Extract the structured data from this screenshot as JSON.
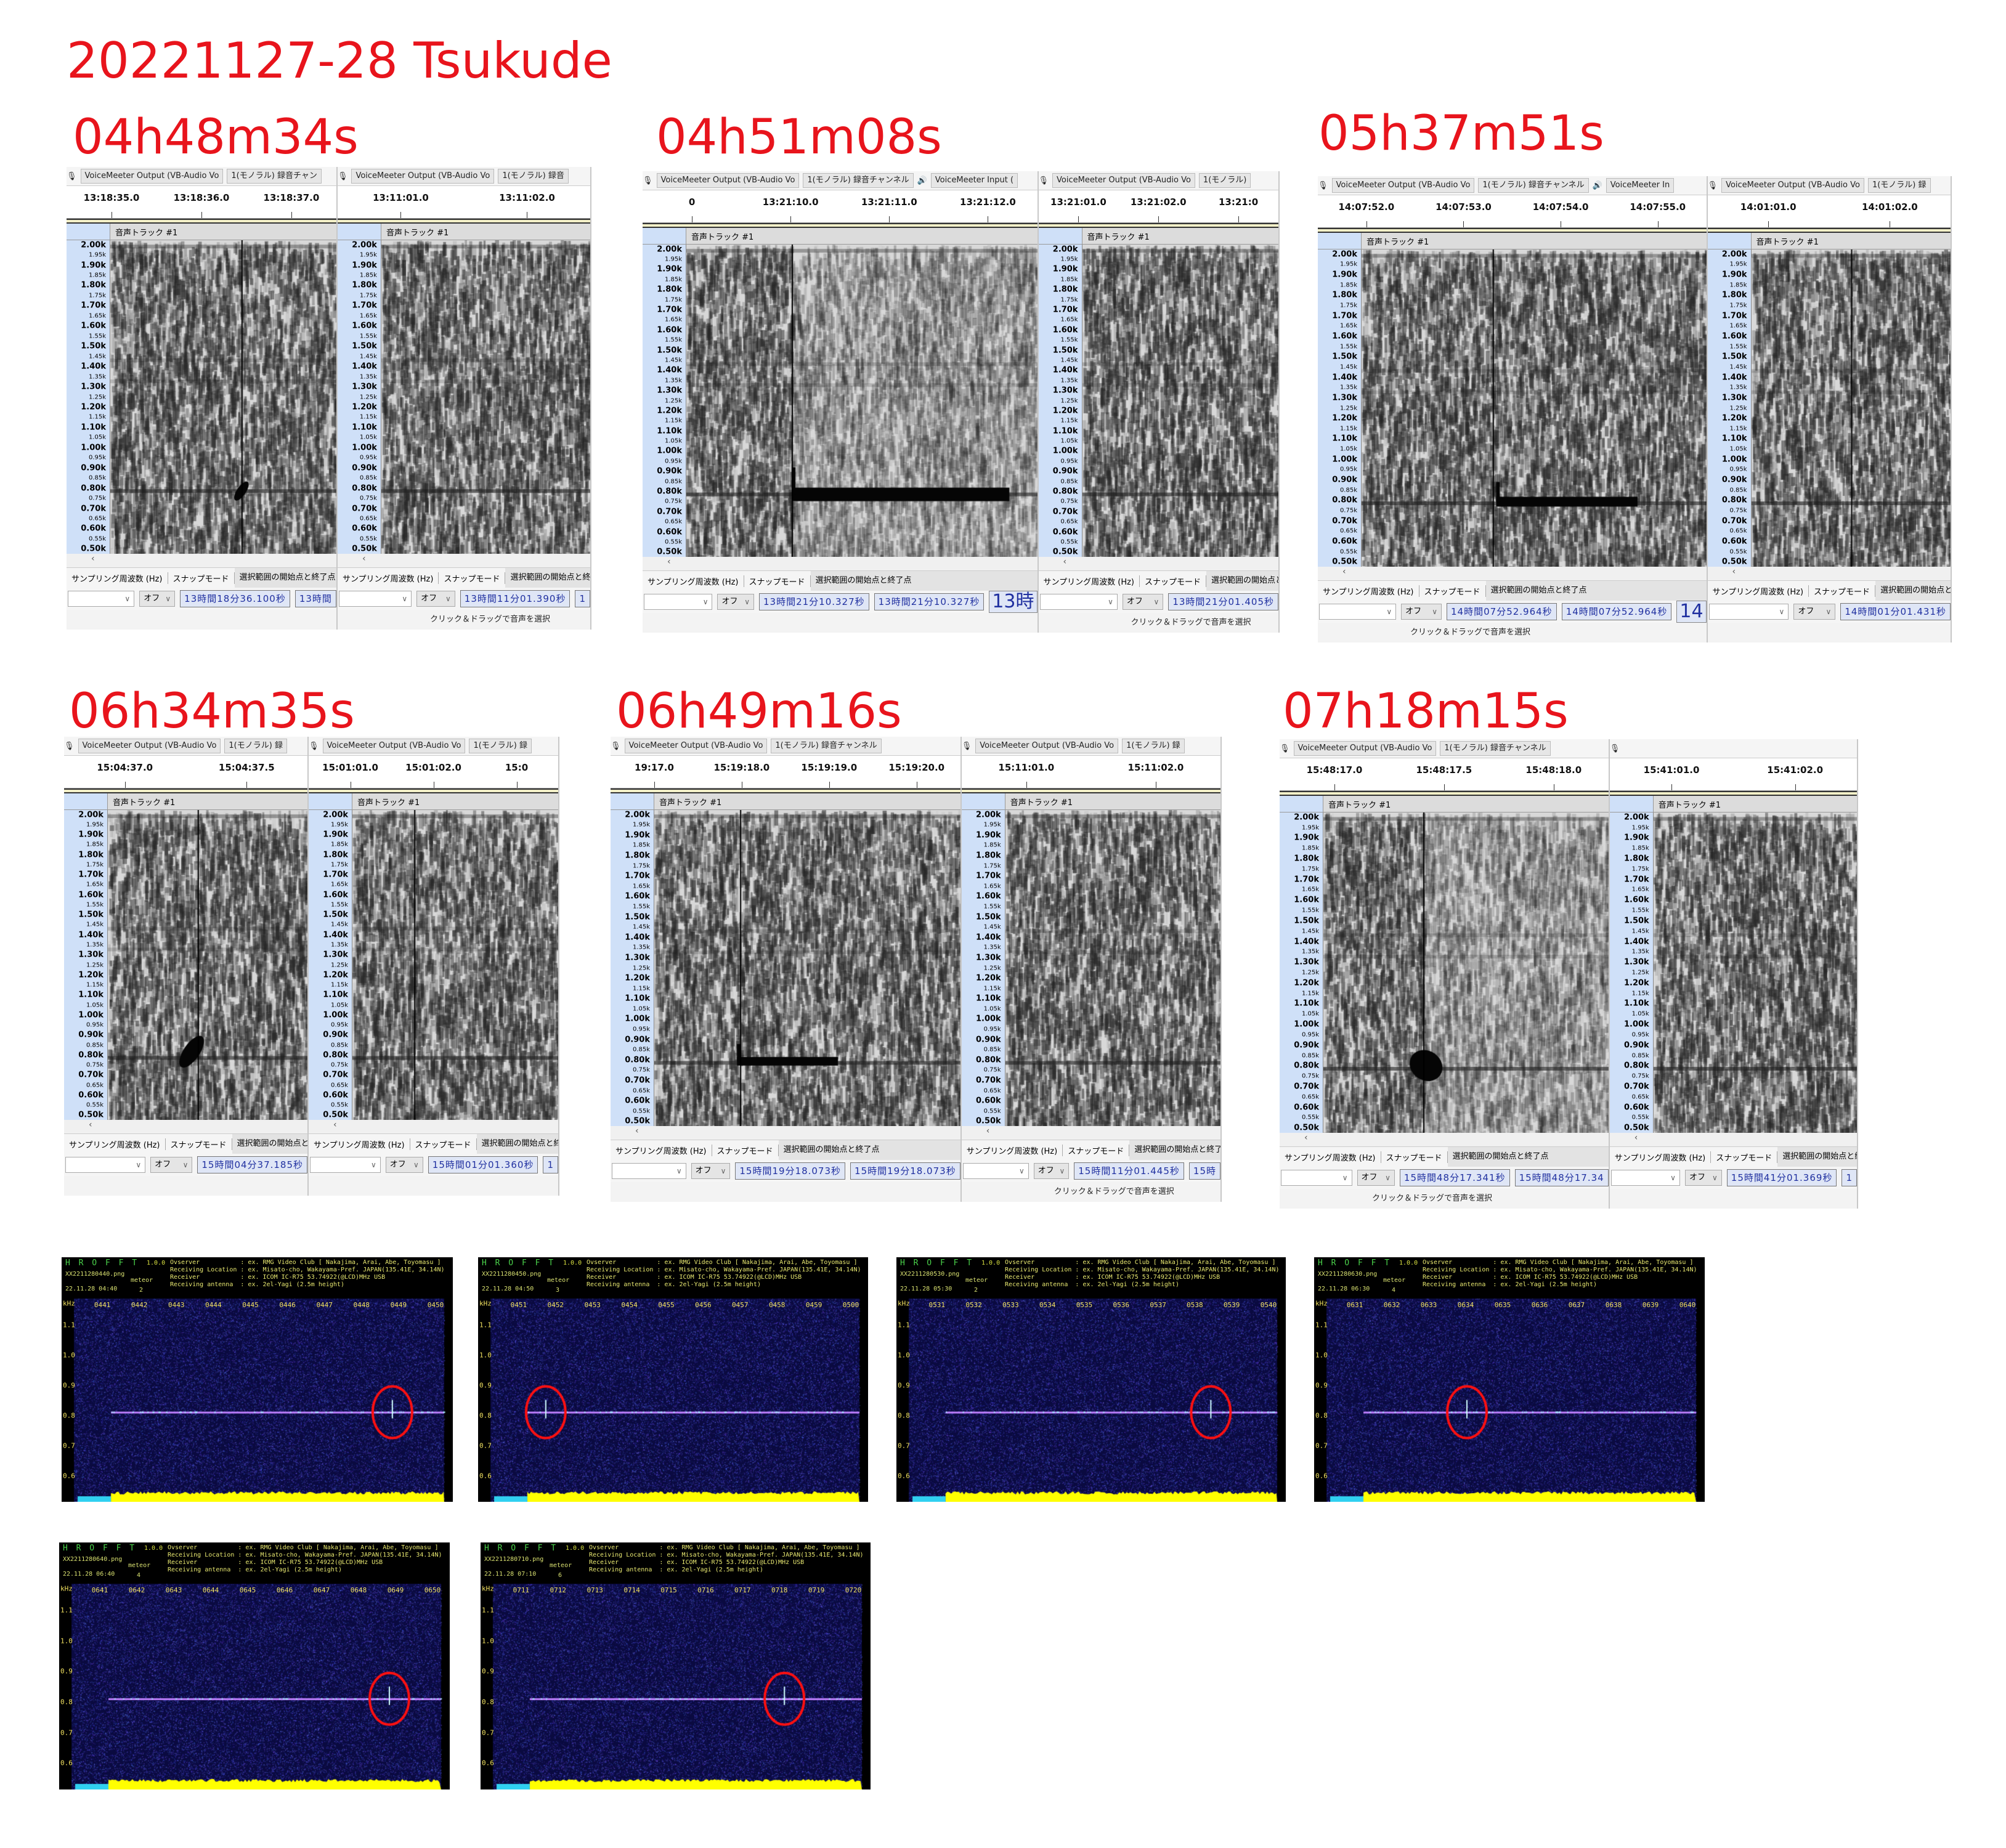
{
  "title": "20221127-28  Tsukude",
  "common": {
    "track_label": "音声トラック #1",
    "rate_label": "サンプリング周波数 (Hz)",
    "snap_label": "スナップモード",
    "sel_label": "選択範囲の開始点と終了点",
    "snap_value": "オフ",
    "status": "クリック＆ドラッグで音声を選択",
    "y_labels": [
      "2.00k",
      "1.95k",
      "1.90k",
      "1.85k",
      "1.80k",
      "1.75k",
      "1.70k",
      "1.65k",
      "1.60k",
      "1.55k",
      "1.50k",
      "1.45k",
      "1.40k",
      "1.35k",
      "1.30k",
      "1.25k",
      "1.20k",
      "1.15k",
      "1.10k",
      "1.05k",
      "1.00k",
      "0.95k",
      "0.90k",
      "0.85k",
      "0.80k",
      "0.75k",
      "0.70k",
      "0.65k",
      "0.60k",
      "0.55k",
      "0.50k"
    ]
  },
  "panels": [
    {
      "label": "04h48m34s",
      "views": [
        {
          "device": "VoiceMeeter Output (VB-Audio Vo",
          "channel": "1(モノラル) 録音チャン",
          "ticks": [
            "13:18:35.0",
            "13:18:36.0",
            "13:18:37.0"
          ],
          "start": "13時間18分36.100秒",
          "end": "13時間",
          "status": ""
        },
        {
          "device": "VoiceMeeter Output (VB-Audio Vo",
          "channel": "1(モノラル) 録音",
          "ticks": [
            "13:11:01.0",
            "13:11:02.0"
          ],
          "start": "13時間11分01.390秒",
          "end": "1",
          "status": "クリック＆ドラッグで音声を選択"
        }
      ]
    },
    {
      "label": "04h51m08s",
      "views": [
        {
          "device": "VoiceMeeter Output (VB-Audio Vo",
          "channel": "1(モノラル) 録音チャンネル",
          "output": "VoiceMeeter Input (",
          "ticks": [
            "0",
            "13:21:10.0",
            "13:21:11.0",
            "13:21:12.0"
          ],
          "start": "13時間21分10.327秒",
          "end": "13時間21分10.327秒",
          "big": "13時",
          "status": ""
        },
        {
          "device": "VoiceMeeter Output (VB-Audio Vo",
          "channel": "1(モノラル)",
          "ticks": [
            "13:21:01.0",
            "13:21:02.0",
            "13:21:0"
          ],
          "start": "13時間21分01.405秒",
          "end": "",
          "status": "クリック＆ドラッグで音声を選択"
        }
      ]
    },
    {
      "label": "05h37m51s",
      "views": [
        {
          "device": "VoiceMeeter Output (VB-Audio Vo",
          "channel": "1(モノラル) 録音チャンネル",
          "output": "VoiceMeeter In",
          "ticks": [
            "14:07:52.0",
            "14:07:53.0",
            "14:07:54.0",
            "14:07:55.0"
          ],
          "start": "14時間07分52.964秒",
          "end": "14時間07分52.964秒",
          "big": "14",
          "status": "クリック＆ドラッグで音声を選択"
        },
        {
          "device": "VoiceMeeter Output (VB-Audio Vo",
          "channel": "1(モノラル) 録",
          "ticks": [
            "14:01:01.0",
            "14:01:02.0"
          ],
          "start": "14時間01分01.431秒",
          "end": "",
          "status": ""
        }
      ]
    },
    {
      "label": "06h34m35s",
      "views": [
        {
          "device": "VoiceMeeter Output (VB-Audio Vo",
          "channel": "1(モノラル) 録",
          "ticks": [
            "15:04:37.0",
            "15:04:37.5"
          ],
          "start": "15時間04分37.185秒",
          "end": "",
          "status": ""
        },
        {
          "device": "VoiceMeeter Output (VB-Audio Vo",
          "channel": "1(モノラル) 録",
          "ticks": [
            "15:01:01.0",
            "15:01:02.0",
            "15:0"
          ],
          "start": "15時間01分01.360秒",
          "end": "1",
          "status": ""
        }
      ]
    },
    {
      "label": "06h49m16s",
      "views": [
        {
          "device": "VoiceMeeter Output (VB-Audio Vo",
          "channel": "1(モノラル) 録音チャンネル",
          "ticks": [
            "19:17.0",
            "15:19:18.0",
            "15:19:19.0",
            "15:19:20.0"
          ],
          "start": "15時間19分18.073秒",
          "end": "15時間19分18.073秒",
          "status": ""
        },
        {
          "device": "VoiceMeeter Output (VB-Audio Vo",
          "channel": "1(モノラル) 録",
          "ticks": [
            "15:11:01.0",
            "15:11:02.0"
          ],
          "start": "15時間11分01.445秒",
          "end": "15時",
          "status": "クリック＆ドラッグで音声を選択"
        }
      ]
    },
    {
      "label": "07h18m15s",
      "views": [
        {
          "device": "VoiceMeeter Output (VB-Audio Vo",
          "channel": "1(モノラル) 録音チャンネル",
          "ticks": [
            "15:48:17.0",
            "15:48:17.5",
            "15:48:18.0"
          ],
          "start": "15時間48分17.341秒",
          "end": "15時間48分17.34",
          "status": "クリック＆ドラッグで音声を選択"
        },
        {
          "device": "",
          "channel": "",
          "ticks": [
            "15:41:01.0",
            "15:41:02.0"
          ],
          "start": "15時間41分01.369秒",
          "end": "1",
          "status": ""
        }
      ]
    }
  ],
  "hrofft": {
    "logo": "H R O F F T",
    "version": "1.0.0",
    "meteor_label": "meteor",
    "unit": "kHz",
    "info": "Ovserver           : ex. RMG Video Club [ Nakajima, Arai, Abe, Toyomasu ]\nReceiving Location : ex. Misato-cho, Wakayama-Pref. JAPAN(135.41E, 34.14N)\nReceiver           : ex. ICOM IC-R75 53.74922(@LCD)MHz USB\nReceiving antenna  : ex. 2el-Yagi (2.5m height)",
    "y_labels": [
      "1.1",
      "1.0",
      "0.9",
      "0.8",
      "0.7",
      "0.6"
    ],
    "colors": {
      "background": "#0a0a40",
      "signal": "#c080ff",
      "power": "#ffff00",
      "marker": "#ff1010"
    },
    "items": [
      {
        "file": "XX2211280440.png",
        "datetime": "22.11.28 04:40",
        "meteor": "2",
        "ticks": [
          "0441",
          "0442",
          "0443",
          "0444",
          "0445",
          "0446",
          "0447",
          "0448",
          "0449",
          "0450"
        ]
      },
      {
        "file": "XX2211280450.png",
        "datetime": "22.11.28 04:50",
        "meteor": "3",
        "ticks": [
          "0451",
          "0452",
          "0453",
          "0454",
          "0455",
          "0456",
          "0457",
          "0458",
          "0459",
          "0500"
        ]
      },
      {
        "file": "XX2211280530.png",
        "datetime": "22.11.28 05:30",
        "meteor": "2",
        "ticks": [
          "0531",
          "0532",
          "0533",
          "0534",
          "0535",
          "0536",
          "0537",
          "0538",
          "0539",
          "0540"
        ]
      },
      {
        "file": "XX2211280630.png",
        "datetime": "22.11.28 06:30",
        "meteor": "4",
        "ticks": [
          "0631",
          "0632",
          "0633",
          "0634",
          "0635",
          "0636",
          "0637",
          "0638",
          "0639",
          "0640"
        ]
      },
      {
        "file": "XX2211280640.png",
        "datetime": "22.11.28 06:40",
        "meteor": "4",
        "ticks": [
          "0641",
          "0642",
          "0643",
          "0644",
          "0645",
          "0646",
          "0647",
          "0648",
          "0649",
          "0650"
        ]
      },
      {
        "file": "XX2211280710.png",
        "datetime": "22.11.28 07:10",
        "meteor": "6",
        "ticks": [
          "0711",
          "0712",
          "0713",
          "0714",
          "0715",
          "0716",
          "0717",
          "0718",
          "0719",
          "0720"
        ]
      }
    ]
  }
}
